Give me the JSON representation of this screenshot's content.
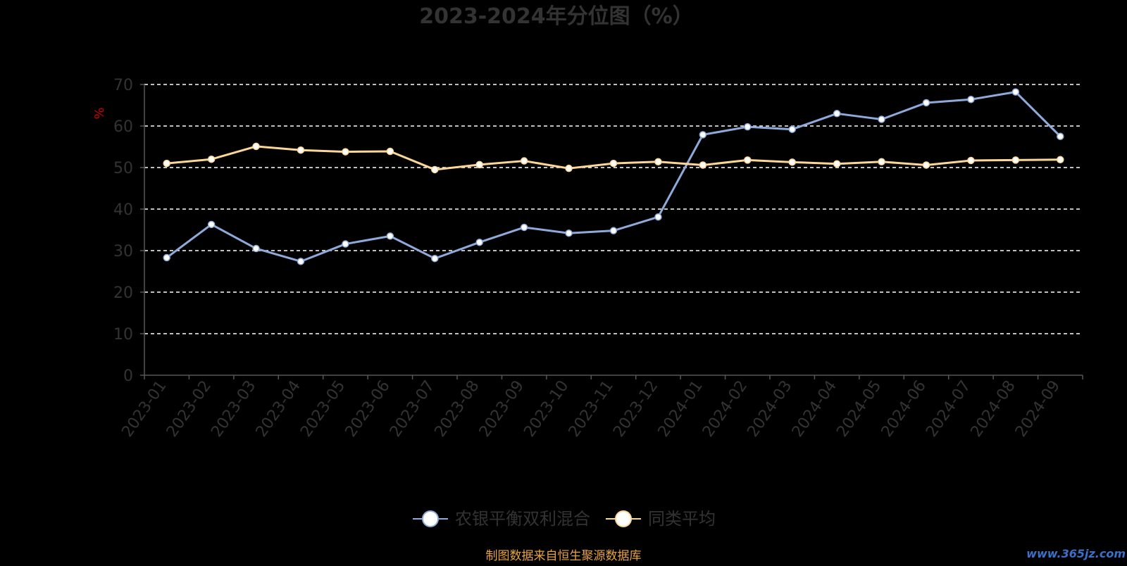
{
  "chart_data": {
    "type": "line",
    "title": "2023-2024年分位图（%）",
    "ylabel": "%",
    "xlabel": "",
    "ylim": [
      0,
      70
    ],
    "yticks": [
      0,
      10,
      20,
      30,
      40,
      50,
      60,
      70
    ],
    "grid": true,
    "legend_position": "bottom-center",
    "categories": [
      "2023-01",
      "2023-02",
      "2023-03",
      "2023-04",
      "2023-05",
      "2023-06",
      "2023-07",
      "2023-08",
      "2023-09",
      "2023-10",
      "2023-11",
      "2023-12",
      "2024-01",
      "2024-02",
      "2024-03",
      "2024-04",
      "2024-05",
      "2024-06",
      "2024-07",
      "2024-08",
      "2024-09"
    ],
    "series": [
      {
        "name": "农银平衡双利混合",
        "color": "#8eaadb",
        "values": [
          28.3,
          36.3,
          30.5,
          27.4,
          31.6,
          33.5,
          28.1,
          32.0,
          35.6,
          34.2,
          34.8,
          38.1,
          57.9,
          59.8,
          59.2,
          63.0,
          61.6,
          65.6,
          66.4,
          68.2,
          57.5
        ]
      },
      {
        "name": "同类平均",
        "color": "#fbd696",
        "values": [
          51.0,
          52.0,
          55.1,
          54.2,
          53.8,
          53.9,
          49.5,
          50.7,
          51.6,
          49.8,
          51.0,
          51.4,
          50.6,
          51.8,
          51.3,
          50.9,
          51.4,
          50.6,
          51.7,
          51.8,
          51.9
        ]
      }
    ],
    "source_note": "制图数据来自恒生聚源数据库",
    "watermark": "www.365jz.com"
  }
}
